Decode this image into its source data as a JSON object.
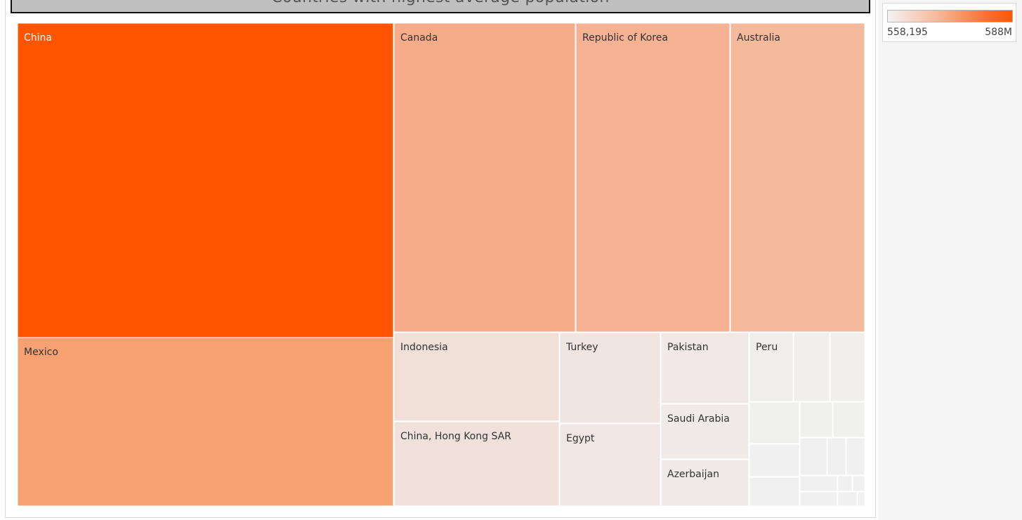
{
  "chart_data": {
    "type": "treemap",
    "title": "Countries with highest average population",
    "measure": "average population",
    "color_legend": {
      "min_label": "558,195",
      "max_label": "588M",
      "low_color": "#f3f3f3",
      "high_color": "#ff5500"
    },
    "tiles": [
      {
        "name": "China",
        "label": "China",
        "color": "#ff5500"
      },
      {
        "name": "Mexico",
        "label": "Mexico",
        "color": "#f7a172"
      },
      {
        "name": "Canada",
        "label": "Canada",
        "color": "#f7ab88"
      },
      {
        "name": "Republic of Korea",
        "label": "Republic of Korea",
        "color": "#f6b293"
      },
      {
        "name": "Australia",
        "label": "Australia",
        "color": "#f5b99c"
      },
      {
        "name": "Indonesia",
        "label": "Indonesia",
        "color": "#f0e0d7"
      },
      {
        "name": "China, Hong Kong SAR",
        "label": "China, Hong Kong SAR",
        "color": "#f0e1da"
      },
      {
        "name": "Turkey",
        "label": "Turkey",
        "color": "#f0e5e1"
      },
      {
        "name": "Egypt",
        "label": "Egypt",
        "color": "#f0e7e4"
      },
      {
        "name": "Pakistan",
        "label": "Pakistan",
        "color": "#f0e9e7"
      },
      {
        "name": "Saudi Arabia",
        "label": "Saudi Arabia",
        "color": "#f0eae8"
      },
      {
        "name": "Azerbaijan",
        "label": "Azerbaijan",
        "color": "#f0ebea"
      },
      {
        "name": "Peru",
        "label": "Peru",
        "color": "#f0eeec"
      },
      {
        "name": "unlabeled-1",
        "label": "",
        "color": "#f0efee"
      },
      {
        "name": "unlabeled-2",
        "label": "",
        "color": "#f0efee"
      },
      {
        "name": "unlabeled-3",
        "label": "",
        "color": "#f0f0ef"
      },
      {
        "name": "unlabeled-4",
        "label": "",
        "color": "#f0f0ef"
      },
      {
        "name": "unlabeled-5",
        "label": "",
        "color": "#f0f0ef"
      },
      {
        "name": "unlabeled-6",
        "label": "",
        "color": "#f0f0f0"
      },
      {
        "name": "unlabeled-7",
        "label": "",
        "color": "#f0f0f0"
      },
      {
        "name": "unlabeled-8",
        "label": "",
        "color": "#f0f0f0"
      },
      {
        "name": "unlabeled-9",
        "label": "",
        "color": "#f0f0f0"
      },
      {
        "name": "unlabeled-10",
        "label": "",
        "color": "#f0f0f0"
      },
      {
        "name": "unlabeled-11",
        "label": "",
        "color": "#f0f0f0"
      },
      {
        "name": "unlabeled-12",
        "label": "",
        "color": "#f0f0f0"
      },
      {
        "name": "unlabeled-13",
        "label": "",
        "color": "#f0f0f0"
      },
      {
        "name": "unlabeled-14",
        "label": "",
        "color": "#f0f0f0"
      },
      {
        "name": "unlabeled-15",
        "label": "",
        "color": "#f0f0f0"
      },
      {
        "name": "unlabeled-16",
        "label": "",
        "color": "#f0f0f0"
      }
    ]
  }
}
